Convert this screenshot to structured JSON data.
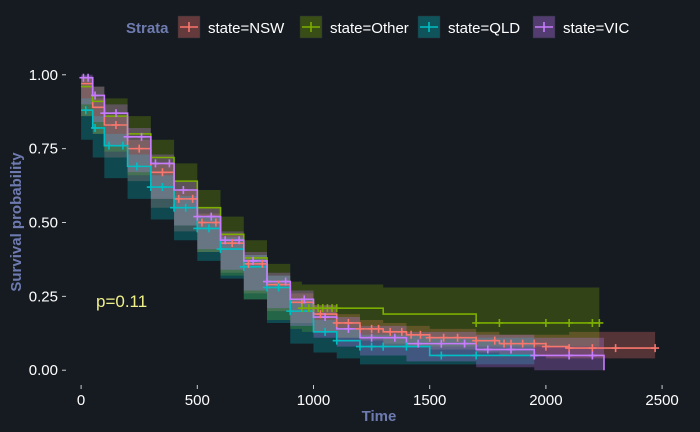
{
  "chart_data": {
    "type": "line",
    "subtype": "kaplan-meier survival curve",
    "xlabel": "Time",
    "ylabel": "Survival probability",
    "xlim": [
      -65,
      2590
    ],
    "ylim": [
      -0.05,
      1.05
    ],
    "xticks": [
      0,
      500,
      1000,
      1500,
      2000,
      2500
    ],
    "yticks": [
      0.0,
      0.25,
      0.5,
      0.75,
      1.0
    ],
    "ytick_labels": [
      "0.00",
      "0.25",
      "0.50",
      "0.75",
      "1.00"
    ],
    "grid": false,
    "background": "#161b22",
    "legend": {
      "title": "Strata",
      "position": "top"
    },
    "annotation": "p=0.11",
    "series": [
      {
        "name": "state=NSW",
        "color": "#f8766d",
        "x": [
          0,
          50,
          100,
          200,
          300,
          400,
          500,
          600,
          700,
          800,
          900,
          1000,
          1100,
          1200,
          1300,
          1400,
          1500,
          1700,
          1800,
          2000,
          2100,
          2300,
          2470
        ],
        "y": [
          0.97,
          0.89,
          0.83,
          0.75,
          0.67,
          0.58,
          0.5,
          0.43,
          0.36,
          0.29,
          0.23,
          0.19,
          0.16,
          0.14,
          0.13,
          0.12,
          0.11,
          0.1,
          0.09,
          0.08,
          0.075,
          0.075,
          0.075
        ],
        "ci_lower": [
          0.94,
          0.86,
          0.8,
          0.72,
          0.64,
          0.55,
          0.47,
          0.4,
          0.33,
          0.26,
          0.2,
          0.16,
          0.13,
          0.11,
          0.1,
          0.09,
          0.08,
          0.07,
          0.06,
          0.05,
          0.04,
          0.04,
          0.04
        ],
        "ci_upper": [
          0.99,
          0.92,
          0.86,
          0.78,
          0.7,
          0.61,
          0.53,
          0.46,
          0.39,
          0.32,
          0.26,
          0.22,
          0.19,
          0.17,
          0.16,
          0.15,
          0.14,
          0.13,
          0.12,
          0.12,
          0.13,
          0.13,
          0.13
        ],
        "censor_x": [
          150,
          250,
          350,
          420,
          480,
          520,
          580,
          650,
          720,
          780,
          850,
          950,
          1030,
          1100,
          1150,
          1200,
          1250,
          1280,
          1330,
          1380,
          1420,
          1460,
          1500,
          1560,
          1620,
          1700,
          1780,
          1820,
          1850,
          1900,
          1950,
          2000,
          2100,
          2200,
          2300,
          2470
        ]
      },
      {
        "name": "state=Other",
        "color": "#7cae00",
        "x": [
          0,
          50,
          100,
          200,
          300,
          400,
          500,
          600,
          700,
          800,
          900,
          950,
          1100,
          1300,
          1700,
          2230
        ],
        "y": [
          0.96,
          0.91,
          0.86,
          0.8,
          0.72,
          0.64,
          0.55,
          0.46,
          0.38,
          0.3,
          0.24,
          0.21,
          0.21,
          0.19,
          0.16,
          0.16
        ],
        "ci_lower": [
          0.92,
          0.86,
          0.8,
          0.74,
          0.66,
          0.58,
          0.49,
          0.4,
          0.32,
          0.24,
          0.17,
          0.14,
          0.13,
          0.11,
          0.08,
          0.08
        ],
        "ci_upper": [
          0.99,
          0.96,
          0.92,
          0.86,
          0.78,
          0.7,
          0.61,
          0.52,
          0.44,
          0.36,
          0.3,
          0.29,
          0.29,
          0.28,
          0.28,
          0.28
        ],
        "censor_x": [
          950,
          980,
          1000,
          1020,
          1040,
          1060,
          1080,
          1100,
          1700,
          1800,
          2000,
          2100,
          2200,
          2230
        ]
      },
      {
        "name": "state=QLD",
        "color": "#00bfc4",
        "x": [
          0,
          50,
          100,
          200,
          300,
          400,
          500,
          600,
          700,
          800,
          900,
          1000,
          1100,
          1200,
          1500,
          1950
        ],
        "y": [
          0.88,
          0.82,
          0.76,
          0.69,
          0.62,
          0.55,
          0.48,
          0.41,
          0.35,
          0.28,
          0.2,
          0.13,
          0.1,
          0.08,
          0.05,
          0.05
        ],
        "ci_lower": [
          0.84,
          0.78,
          0.72,
          0.65,
          0.58,
          0.51,
          0.44,
          0.37,
          0.31,
          0.24,
          0.16,
          0.09,
          0.06,
          0.04,
          0.02,
          0.02
        ],
        "ci_upper": [
          0.92,
          0.86,
          0.8,
          0.73,
          0.66,
          0.59,
          0.52,
          0.45,
          0.39,
          0.32,
          0.24,
          0.17,
          0.14,
          0.12,
          0.11,
          0.11
        ],
        "censor_x": [
          20,
          60,
          120,
          180,
          240,
          300,
          350,
          400,
          450,
          500,
          550,
          600,
          700,
          800,
          850,
          900,
          1050,
          1100,
          1200,
          1250,
          1300,
          1400,
          1550,
          1700,
          1950
        ]
      },
      {
        "name": "state=VIC",
        "color": "#c77cff",
        "x": [
          0,
          50,
          100,
          200,
          300,
          400,
          500,
          600,
          700,
          800,
          900,
          1000,
          1100,
          1200,
          1400,
          1700,
          1950,
          2250
        ],
        "y": [
          0.99,
          0.93,
          0.87,
          0.79,
          0.7,
          0.61,
          0.52,
          0.44,
          0.37,
          0.3,
          0.24,
          0.18,
          0.14,
          0.11,
          0.09,
          0.07,
          0.05,
          0.0
        ],
        "ci_lower": [
          0.97,
          0.9,
          0.84,
          0.76,
          0.67,
          0.58,
          0.49,
          0.41,
          0.34,
          0.27,
          0.21,
          0.15,
          0.11,
          0.08,
          0.05,
          0.03,
          0.01,
          0.0
        ],
        "ci_upper": [
          1.0,
          0.96,
          0.9,
          0.82,
          0.73,
          0.64,
          0.55,
          0.47,
          0.4,
          0.33,
          0.27,
          0.22,
          0.18,
          0.15,
          0.13,
          0.12,
          0.11,
          0.05
        ],
        "censor_x": [
          10,
          30,
          60,
          100,
          150,
          200,
          260,
          320,
          380,
          440,
          500,
          560,
          620,
          680,
          740,
          800,
          880,
          960,
          1050,
          1150,
          1250,
          1350,
          1450,
          1550,
          1650,
          1750,
          1850,
          1950,
          2100,
          2200
        ]
      }
    ]
  }
}
